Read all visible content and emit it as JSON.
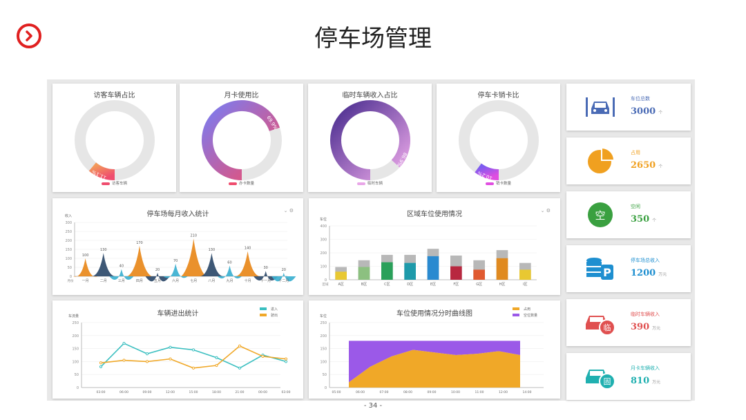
{
  "page": {
    "title": "停车场管理",
    "page_number": "- 34 -"
  },
  "donuts": [
    {
      "title": "访客车辆占比",
      "percent": 11.1,
      "label": "11.1%",
      "legend": "访客车辆",
      "color_start": "#f39a5a",
      "color_end": "#ef4d6e"
    },
    {
      "title": "月卡使用比",
      "percent": 69.9,
      "label": "69.9%",
      "legend": "办卡数量",
      "color_start": "#7b7cf0",
      "color_end": "#ef4d6e"
    },
    {
      "title": "临时车辆收入占比",
      "percent": 86.9,
      "label": "86.9%",
      "legend": "临时车辆",
      "color_start": "#4a2d8f",
      "color_end": "#e9a6e8"
    },
    {
      "title": "停车卡销卡比",
      "percent": 10.2,
      "label": "10.2%",
      "legend": "销卡数量",
      "color_start": "#7b5cf0",
      "color_end": "#e04ee0"
    }
  ],
  "stats": [
    {
      "label": "车位总数",
      "value": "3000",
      "unit": "个",
      "color": "#4a6bb5",
      "icon": "car-space-icon"
    },
    {
      "label": "占用",
      "value": "2650",
      "unit": "个",
      "color": "#f0a020",
      "icon": "pie-chart-icon"
    },
    {
      "label": "空闲",
      "value": "350",
      "unit": "个",
      "color": "#3aa040",
      "icon": "empty-icon",
      "icon_text": "空"
    },
    {
      "label": "停车场总收入",
      "value": "1200",
      "unit": "万元",
      "color": "#1e8fd0",
      "icon": "parking-coins-icon"
    },
    {
      "label": "临时车辆收入",
      "value": "390",
      "unit": "万元",
      "color": "#e05050",
      "icon": "temp-car-icon",
      "icon_text": "临"
    },
    {
      "label": "月卡车辆收入",
      "value": "810",
      "unit": "万元",
      "color": "#20b0b0",
      "icon": "monthly-car-icon",
      "icon_text": "固"
    }
  ],
  "chart_data": [
    {
      "type": "area",
      "title": "停车场每月收入统计",
      "ylabel": "收入",
      "ylim": [
        0,
        300
      ],
      "yticks": [
        "0",
        "50",
        "100",
        "150",
        "200",
        "250",
        "300"
      ],
      "origin_label": "月份",
      "categories": [
        "一月",
        "二月",
        "三月",
        "四月",
        "五月",
        "六月",
        "七月",
        "八月",
        "九月",
        "十月",
        "十一月",
        "十二月"
      ],
      "values": [
        100,
        130,
        40,
        170,
        20,
        70,
        210,
        130,
        60,
        140,
        30,
        20
      ],
      "value_labels": [
        "100",
        "130",
        "40",
        "170",
        "20",
        "70",
        "210",
        "130",
        "60",
        "140",
        "30",
        "20"
      ],
      "colors": [
        "#e8881a",
        "#2e4a6a",
        "#3bb0d0"
      ]
    },
    {
      "type": "bar",
      "title": "区域车位使用情况",
      "ylabel": "车位",
      "ylim": [
        0,
        400
      ],
      "yticks": [
        "0",
        "100",
        "200",
        "300",
        "400"
      ],
      "origin_label": "区域",
      "categories": [
        "A区",
        "B区",
        "C区",
        "D区",
        "E区",
        "F区",
        "G区",
        "H区",
        "I区"
      ],
      "used": [
        60,
        95,
        130,
        125,
        175,
        100,
        75,
        160,
        75
      ],
      "total": [
        95,
        145,
        185,
        185,
        230,
        180,
        145,
        220,
        125
      ],
      "colors": [
        "#e8c832",
        "#8cc080",
        "#2aa05a",
        "#1e9aaa",
        "#2a8ad0",
        "#b82840",
        "#e05a30",
        "#e08a20",
        "#e8c832"
      ],
      "total_color": "#b8b8b8"
    },
    {
      "type": "line",
      "title": "车辆进出统计",
      "ylabel": "车流量",
      "ylim": [
        0,
        250
      ],
      "yticks": [
        "0",
        "50",
        "100",
        "150",
        "200",
        "250"
      ],
      "x": [
        "03:00",
        "06:00",
        "09:00",
        "12:00",
        "15:00",
        "18:00",
        "21:00",
        "00:00",
        "03:00"
      ],
      "series": [
        {
          "name": "进入",
          "color": "#3bbfc0",
          "values": [
            80,
            170,
            130,
            155,
            145,
            115,
            75,
            125,
            100
          ]
        },
        {
          "name": "驶出",
          "color": "#f0a828",
          "values": [
            95,
            105,
            100,
            110,
            75,
            85,
            160,
            120,
            110
          ]
        }
      ]
    },
    {
      "type": "area",
      "title": "车位使用情况分时曲线图",
      "ylabel": "车位",
      "ylim": [
        0,
        250
      ],
      "yticks": [
        "0",
        "50",
        "100",
        "150",
        "200",
        "250"
      ],
      "x": [
        "05:00",
        "06:00",
        "07:00",
        "08:00",
        "09:00",
        "10:00",
        "11:00",
        "12:00",
        "14:00"
      ],
      "series": [
        {
          "name": "占用",
          "color": "#f0a828",
          "values": [
            20,
            80,
            120,
            145,
            135,
            125,
            130,
            140,
            125
          ]
        },
        {
          "name": "空位数量",
          "color": "#9b59e8",
          "values": [
            160,
            100,
            60,
            35,
            45,
            55,
            50,
            40,
            55
          ]
        }
      ]
    }
  ]
}
